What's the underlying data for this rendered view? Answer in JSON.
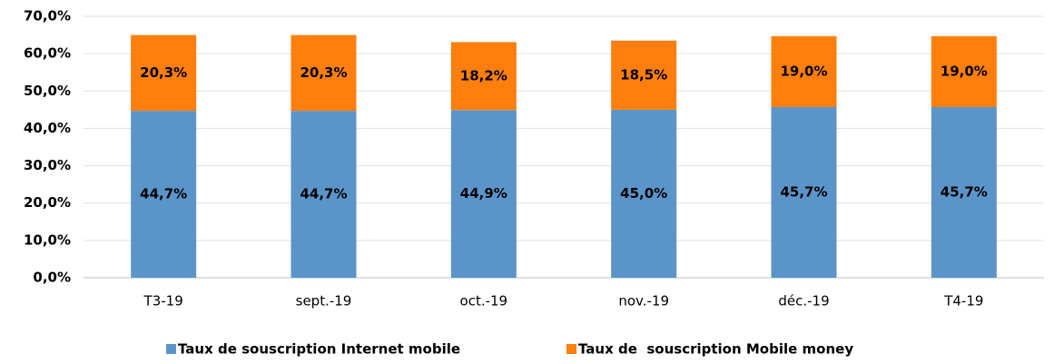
{
  "chart_data": {
    "type": "stacked_bar",
    "categories": [
      "T3-19",
      "sept.-19",
      "oct.-19",
      "nov.-19",
      "déc.-19",
      "T4-19"
    ],
    "series": [
      {
        "name": "Taux de souscription Internet mobile",
        "color": "#5b94c9",
        "values": [
          44.7,
          44.7,
          44.9,
          45.0,
          45.7,
          45.7
        ],
        "value_labels": [
          "44,7%",
          "44,7%",
          "44,9%",
          "45,0%",
          "45,7%",
          "45,7%"
        ]
      },
      {
        "name": "Taux de  souscription Mobile money",
        "color": "#ff7f0e",
        "values": [
          20.3,
          20.3,
          18.2,
          18.5,
          19.0,
          19.0
        ],
        "value_labels": [
          "20,3%",
          "20,3%",
          "18,2%",
          "18,5%",
          "19,0%",
          "19,0%"
        ]
      }
    ],
    "ylim": [
      0,
      70
    ],
    "yticks": [
      {
        "value": 0,
        "label": "0,0%"
      },
      {
        "value": 10,
        "label": "10,0%"
      },
      {
        "value": 20,
        "label": "20,0%"
      },
      {
        "value": 30,
        "label": "30,0%"
      },
      {
        "value": 40,
        "label": "40,0%"
      },
      {
        "value": 50,
        "label": "50,0%"
      },
      {
        "value": 60,
        "label": "60,0%"
      },
      {
        "value": 70,
        "label": "70,0%"
      }
    ],
    "grid": true,
    "legend": "bottom"
  }
}
